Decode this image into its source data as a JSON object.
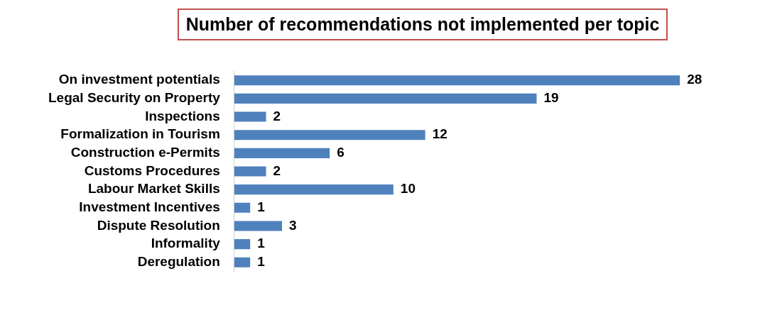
{
  "chart_data": {
    "type": "bar",
    "orientation": "horizontal",
    "title": "Number of recommendations not implemented per topic",
    "categories": [
      "On investment potentials",
      "Legal Security on Property",
      "Inspections",
      "Formalization in Tourism",
      "Construction e-Permits",
      "Customs Procedures",
      "Labour Market Skills",
      "Investment Incentives",
      "Dispute Resolution",
      "Informality",
      "Deregulation"
    ],
    "values": [
      28,
      19,
      2,
      12,
      6,
      2,
      10,
      1,
      3,
      1,
      1
    ],
    "color": "#4f81bd",
    "data_labels": true,
    "legend": false,
    "tick_labels": "y"
  }
}
